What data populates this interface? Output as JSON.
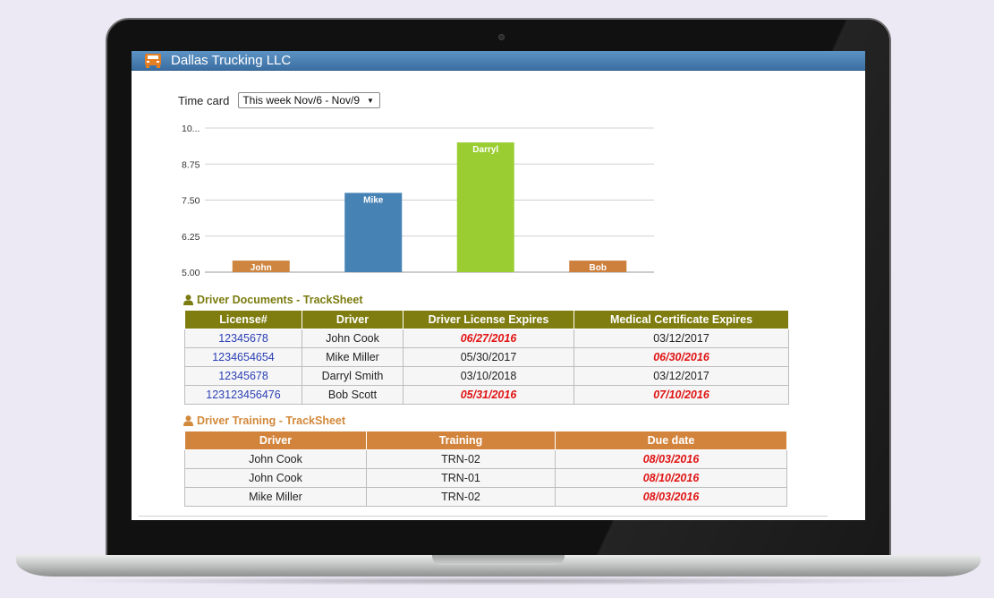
{
  "app": {
    "title": "Dallas Trucking LLC"
  },
  "timecard": {
    "label": "Time card",
    "selected_period": "This week Nov/6 - Nov/9"
  },
  "chart_data": {
    "type": "bar",
    "categories": [
      "John",
      "Mike",
      "Darryl",
      "Bob"
    ],
    "values": [
      5.4,
      7.75,
      9.5,
      5.4
    ],
    "colors": [
      "#cd853f",
      "#4682b4",
      "#9acd32",
      "#cd7f3c"
    ],
    "y_ticks": [
      "10...",
      "8.75",
      "7.50",
      "6.25",
      "5.00"
    ],
    "ylim": [
      5.0,
      10.0
    ],
    "grid": true
  },
  "documents": {
    "title": "Driver Documents - TrackSheet",
    "columns": [
      "License#",
      "Driver",
      "Driver License Expires",
      "Medical Certificate Expires"
    ],
    "rows": [
      {
        "license": "12345678",
        "driver": "John Cook",
        "license_expires": "06/27/2016",
        "license_expired": true,
        "medical_expires": "03/12/2017",
        "medical_expired": false
      },
      {
        "license": "1234654654",
        "driver": "Mike Miller",
        "license_expires": "05/30/2017",
        "license_expired": false,
        "medical_expires": "06/30/2016",
        "medical_expired": true
      },
      {
        "license": "12345678",
        "driver": "Darryl Smith",
        "license_expires": "03/10/2018",
        "license_expired": false,
        "medical_expires": "03/12/2017",
        "medical_expired": false
      },
      {
        "license": "123123456476",
        "driver": "Bob Scott",
        "license_expires": "05/31/2016",
        "license_expired": true,
        "medical_expires": "07/10/2016",
        "medical_expired": true
      }
    ]
  },
  "training": {
    "title": "Driver Training - TrackSheet",
    "columns": [
      "Driver",
      "Training",
      "Due date"
    ],
    "rows": [
      {
        "driver": "John Cook",
        "training": "TRN-02",
        "due": "08/03/2016"
      },
      {
        "driver": "John Cook",
        "training": "TRN-01",
        "due": "08/10/2016"
      },
      {
        "driver": "Mike Miller",
        "training": "TRN-02",
        "due": "08/03/2016"
      }
    ]
  }
}
